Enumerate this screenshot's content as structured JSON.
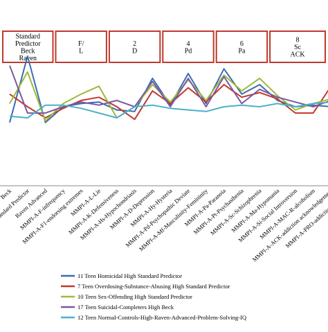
{
  "chart_data": {
    "type": "line",
    "grid": false,
    "legend_position": "bottom",
    "ylim": [
      0,
      10
    ],
    "group_headers": [
      {
        "lines": [
          "Standard",
          "Predictor",
          "Beck",
          "Raven"
        ],
        "start": 0,
        "end": 2
      },
      {
        "lines": [
          "F/",
          "L"
        ],
        "start": 3,
        "end": 5
      },
      {
        "lines": [
          "2",
          "D"
        ],
        "start": 6,
        "end": 8
      },
      {
        "lines": [
          "4",
          "Pd"
        ],
        "start": 9,
        "end": 11
      },
      {
        "lines": [
          "6",
          "Pa"
        ],
        "start": 12,
        "end": 14
      },
      {
        "lines": [
          "8",
          "Sc",
          "ACK"
        ],
        "start": 15,
        "end": 19
      }
    ],
    "categories": [
      "Beck",
      "Standard Predictor",
      "Raven Advanced",
      "MMPI-A-F-infrequency",
      "MMPI-A-F1-endorsing extremes",
      "MMPI-A-L-Lie",
      "MMPI-A-K-Defensiveness",
      "MMPI-A-Hs-Hypochondriasis",
      "MMPI-A-D-Depression",
      "MMPI-A-Hy-Hysteria",
      "MMPI-A-Pd-Psychopathic Deviate",
      "MMPI-A-Mf-Masculinity-Femininity",
      "MMPI-A-Pa-Paranoia",
      "MMPI-A-Pt-Psychasthenia",
      "MMPI-A-Sc-Schizophrenia",
      "MMPI-A-Ma-Hypomania",
      "MMPI-A-Si-Social Introversion",
      "MMPI-A-MAC-R-alcoholism",
      "MMPI-A-ACK-addiction acknowledgement",
      "MMPI-A-PRO-addiction proneness"
    ],
    "series": [
      {
        "name": "11 Teen Homicidal High Standard Predictor",
        "color": "#3c6bb0",
        "values": [
          4.0,
          8.2,
          4.0,
          5.0,
          5.2,
          5.3,
          4.8,
          4.7,
          6.8,
          5.1,
          7.1,
          5.2,
          7.4,
          5.8,
          6.4,
          5.4,
          5.0,
          5.1,
          5.0,
          5.4
        ]
      },
      {
        "name": "7 Teen Overdosing-Substance-Abusing High Standard Predictor",
        "color": "#c0392b",
        "values": [
          5.8,
          5.0,
          4.3,
          4.9,
          5.4,
          5.6,
          5.0,
          4.2,
          6.0,
          5.2,
          6.2,
          5.3,
          6.4,
          5.6,
          5.9,
          5.5,
          4.6,
          4.6,
          6.3,
          5.4
        ]
      },
      {
        "name": "10 Teen Sex-Offending High Standard Predictor",
        "color": "#9bbb3b",
        "values": [
          5.2,
          7.2,
          4.1,
          5.2,
          5.8,
          6.3,
          4.3,
          5.0,
          6.4,
          5.3,
          6.7,
          5.4,
          7.0,
          6.0,
          6.8,
          5.7,
          4.8,
          5.2,
          5.5,
          5.3
        ]
      },
      {
        "name": "17 Teen Suicidal-Completers High Beck",
        "color": "#7b57a3",
        "values": [
          7.6,
          4.6,
          4.6,
          5.0,
          5.3,
          5.1,
          5.4,
          5.0,
          6.6,
          5.0,
          6.8,
          5.0,
          6.9,
          5.2,
          6.1,
          5.6,
          5.3,
          5.0,
          5.4,
          5.5
        ]
      },
      {
        "name": "12 Teen Normal-Controls-High-Raven-Advanced-Problem-Solving-IQ",
        "color": "#4bb0c8",
        "values": [
          4.4,
          4.3,
          5.1,
          5.1,
          4.9,
          4.6,
          4.3,
          5.0,
          5.1,
          4.9,
          4.8,
          4.7,
          5.0,
          5.1,
          5.0,
          5.2,
          5.0,
          5.2,
          5.3,
          5.5
        ]
      }
    ]
  }
}
